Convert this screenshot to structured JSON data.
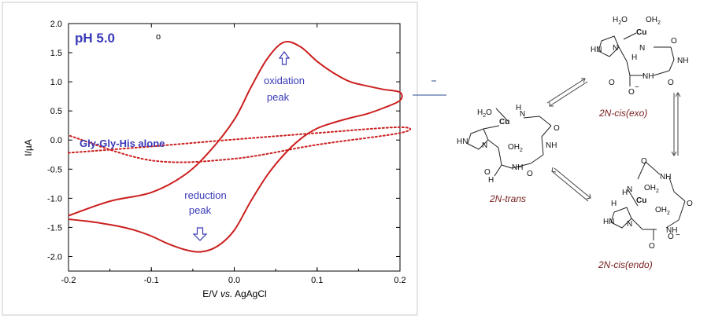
{
  "chart_data": {
    "type": "line",
    "xlabel_pre": "E/V ",
    "xlabel_vs": "vs.",
    "xlabel_post": " AgAgCl",
    "ylabel": "I/µA",
    "xlim": [
      -0.2,
      0.2
    ],
    "ylim": [
      -2.25,
      2.0
    ],
    "xticks": [
      -0.2,
      -0.1,
      0.0,
      0.1,
      0.2
    ],
    "xtick_labels": [
      "-0.2",
      "-0.1",
      "0.0",
      "0.1",
      "0.2"
    ],
    "yticks": [
      2.0,
      1.5,
      1.0,
      0.5,
      0.0,
      -0.5,
      -1.0,
      -1.5,
      -2.0
    ],
    "ytick_labels": [
      "2.0",
      "1.5",
      "1.0",
      "0.5",
      "0.0",
      "-0.5",
      "-1.0",
      "-1.5",
      "-2.0"
    ],
    "grid": false,
    "series": [
      {
        "style": "solid",
        "color": "#cc1f1f",
        "x": [
          -0.2,
          -0.15,
          -0.1,
          -0.06,
          -0.03,
          0.0,
          0.02,
          0.04,
          0.06,
          0.08,
          0.1,
          0.12,
          0.14,
          0.16,
          0.18,
          0.2,
          0.2,
          0.18,
          0.16,
          0.14,
          0.12,
          0.1,
          0.08,
          0.06,
          0.04,
          0.02,
          0.0,
          -0.02,
          -0.04,
          -0.06,
          -0.08,
          -0.1,
          -0.12,
          -0.14,
          -0.16,
          -0.18,
          -0.2
        ],
        "y": [
          -1.3,
          -1.05,
          -0.9,
          -0.6,
          -0.2,
          0.35,
          0.9,
          1.4,
          1.68,
          1.6,
          1.35,
          1.15,
          1.0,
          0.93,
          0.87,
          0.82,
          0.68,
          0.55,
          0.45,
          0.38,
          0.3,
          0.2,
          0.02,
          -0.25,
          -0.6,
          -1.05,
          -1.55,
          -1.82,
          -1.92,
          -1.88,
          -1.78,
          -1.65,
          -1.55,
          -1.48,
          -1.43,
          -1.39,
          -1.36
        ]
      },
      {
        "style": "dotted",
        "color": "#cc1f1f",
        "x": [
          -0.2,
          -0.1,
          0.0,
          0.1,
          0.2,
          0.2,
          0.1,
          0.0,
          -0.1,
          -0.2
        ],
        "y": [
          -0.22,
          -0.11,
          0.01,
          0.12,
          0.22,
          0.12,
          -0.08,
          -0.32,
          -0.35,
          0.08
        ]
      }
    ],
    "annotations": {
      "ph": "pH 5.0",
      "marker": "o",
      "gly": "Gly-Gly-His alone",
      "ox1": "oxidation",
      "ox2": "peak",
      "red1": "reduction",
      "red2": "peak"
    }
  },
  "chem": {
    "cu": "Cu",
    "h2o": "H",
    "o": "O",
    "oh2": "OH",
    "two": "2",
    "n": "N",
    "hn": "HN",
    "nh": "NH",
    "h": "H",
    "minus": "−",
    "names": {
      "trans": "2N-trans",
      "exo": "2N-cis(exo)",
      "endo": "2N-cis(endo)"
    }
  },
  "colors": {
    "curve": "#cc1f1f",
    "annotation": "#3a3ab8",
    "species": "#7a2222"
  }
}
